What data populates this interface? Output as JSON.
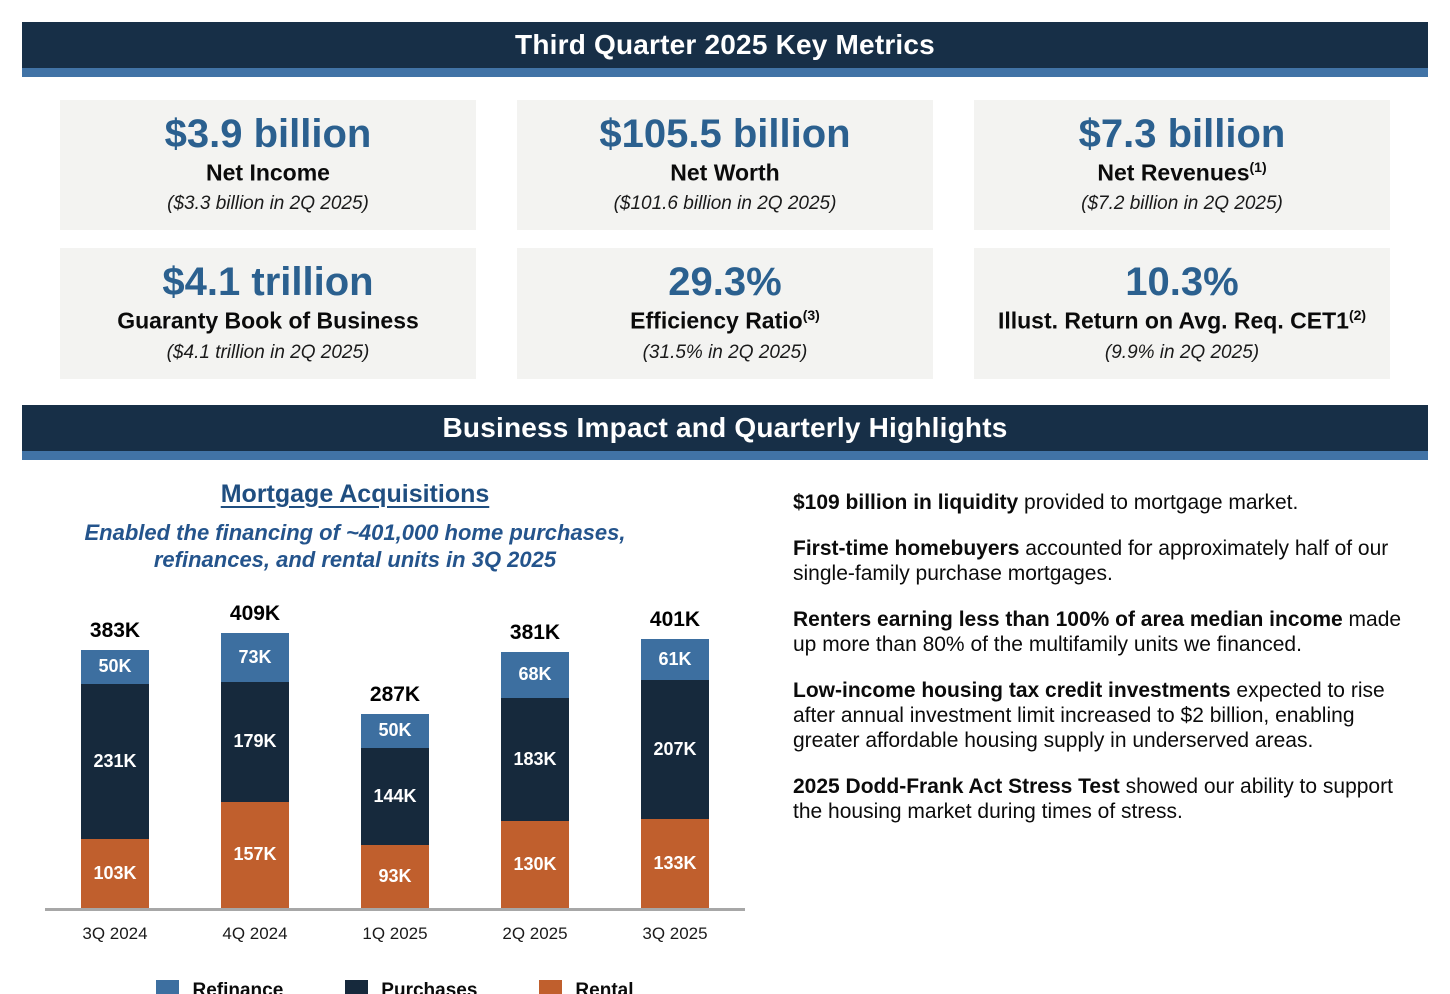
{
  "headers": {
    "key_metrics": "Third Quarter 2025 Key Metrics",
    "highlights": "Business Impact and Quarterly Highlights"
  },
  "metrics": [
    {
      "value": "$3.9 billion",
      "label": "Net Income",
      "sup": "",
      "prior": "($3.3 billion in 2Q 2025)"
    },
    {
      "value": "$105.5 billion",
      "label": "Net Worth",
      "sup": "",
      "prior": "($101.6 billion in 2Q 2025)"
    },
    {
      "value": "$7.3 billion",
      "label": "Net Revenues",
      "sup": "(1)",
      "prior": "($7.2 billion in 2Q 2025)"
    },
    {
      "value": "$4.1 trillion",
      "label": "Guaranty Book of Business",
      "sup": "",
      "prior": "($4.1 trillion in 2Q 2025)"
    },
    {
      "value": "29.3%",
      "label": "Efficiency Ratio",
      "sup": "(3)",
      "prior": "(31.5% in 2Q 2025)"
    },
    {
      "value": "10.3%",
      "label": "Illust. Return on Avg. Req. CET1",
      "sup": "(2)",
      "prior": "(9.9% in 2Q 2025)"
    }
  ],
  "chart_data": {
    "type": "bar",
    "stacked": true,
    "title": "Mortgage Acquisitions",
    "subtitle": "Enabled the financing of ~401,000 home purchases, refinances, and rental units in 3Q 2025",
    "categories": [
      "3Q 2024",
      "4Q 2024",
      "1Q 2025",
      "2Q 2025",
      "3Q 2025"
    ],
    "series": [
      {
        "name": "Refinance",
        "color": "#3D6FA0",
        "values": [
          50,
          73,
          50,
          68,
          61
        ]
      },
      {
        "name": "Purchases",
        "color": "#16293C",
        "values": [
          231,
          179,
          144,
          183,
          207
        ]
      },
      {
        "name": "Rental",
        "color": "#C05F2D",
        "values": [
          103,
          157,
          93,
          130,
          133
        ]
      }
    ],
    "totals": [
      383,
      409,
      287,
      381,
      401
    ],
    "unit": "K",
    "ylim": [
      0,
      430
    ],
    "grid": false,
    "legend_position": "bottom"
  },
  "highlights": [
    {
      "bold": "$109 billion in liquidity",
      "rest": " provided to mortgage market."
    },
    {
      "bold": "First-time homebuyers",
      "rest": " accounted for approximately half of our single-family purchase mortgages."
    },
    {
      "bold": "Renters earning less than 100% of area median income",
      "rest": " made up more than 80% of the multifamily units we financed."
    },
    {
      "bold": "Low-income housing tax credit investments",
      "rest": " expected to rise after annual investment limit increased to $2 billion, enabling greater affordable housing supply in underserved areas."
    },
    {
      "bold": "2025 Dodd-Frank Act Stress Test",
      "rest": " showed our ability to support the housing market during times of stress."
    }
  ],
  "colors": {
    "banner_navy": "#172F47",
    "banner_strip_blue": "#4173A6",
    "card_background": "#F3F3F1",
    "metric_value_blue": "#2B608F",
    "chart_title_blue": "#1F4E80",
    "axis_gray": "#A7A7A7"
  }
}
